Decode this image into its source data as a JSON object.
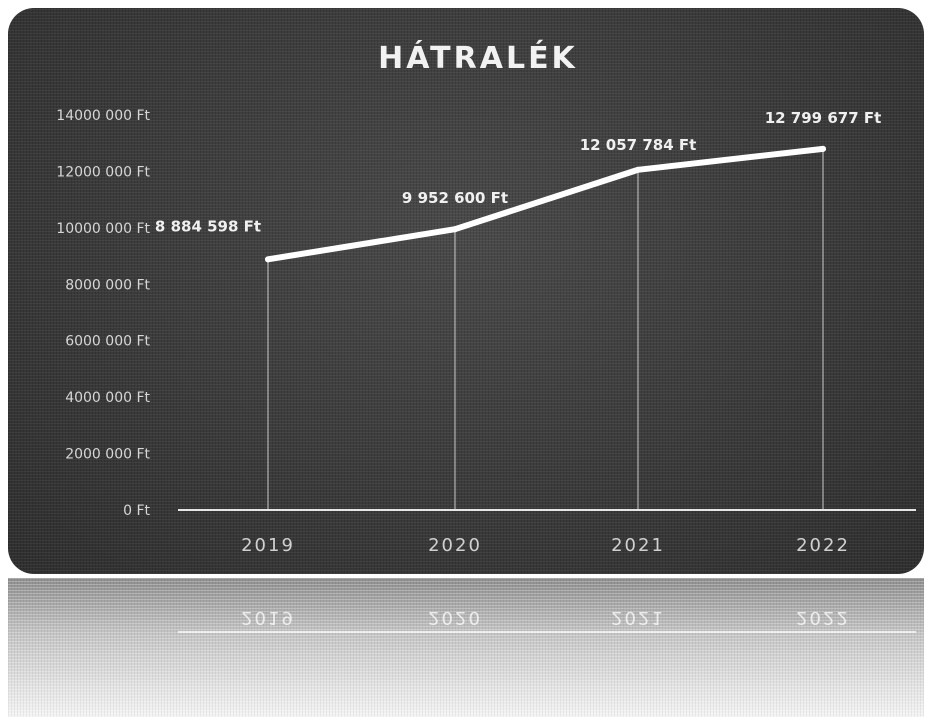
{
  "chart_data": {
    "type": "line",
    "title": "HÁTRALÉK",
    "categories": [
      "2019",
      "2020",
      "2021",
      "2022"
    ],
    "series": [
      {
        "values": [
          8884598,
          9952600,
          12057784,
          12799677
        ]
      }
    ],
    "data_labels": [
      "8 884 598 Ft",
      "9 952 600 Ft",
      "12 057 784 Ft",
      "12 799 677 Ft"
    ],
    "y_ticks": [
      "0 Ft",
      "2000 000 Ft",
      "4000 000 Ft",
      "6000 000 Ft",
      "8000 000 Ft",
      "10000 000 Ft",
      "12000 000 Ft",
      "14000 000 Ft"
    ],
    "ylim": [
      0,
      14000000
    ],
    "grid": false,
    "drop_lines": true,
    "legend": "none",
    "colors": {
      "background": "#3a3a3a",
      "line": "#ffffff",
      "text": "#e8e8e8"
    }
  }
}
